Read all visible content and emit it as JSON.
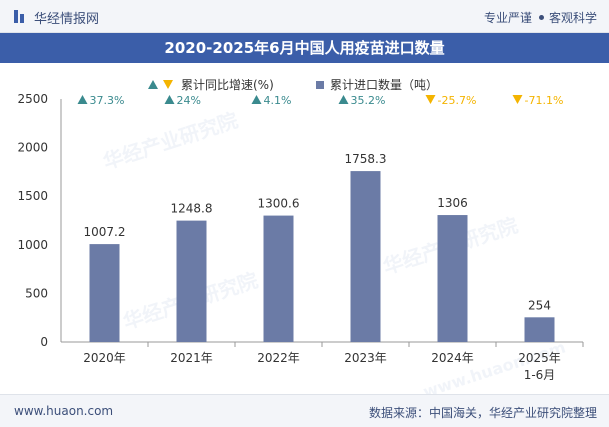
{
  "header": {
    "brand": "华经情报网",
    "slogan_left": "专业严谨",
    "slogan_right": "客观科学"
  },
  "chart_data": {
    "type": "bar",
    "title": "2020-2025年6月中国人用疫苗进口数量",
    "categories": [
      "2020年",
      "2021年",
      "2022年",
      "2023年",
      "2024年",
      "2025年1-6月"
    ],
    "series": [
      {
        "name": "累计进口数量（吨）",
        "values": [
          1007.2,
          1248.8,
          1300.6,
          1758.3,
          1306,
          254
        ],
        "labels": [
          "1007.2",
          "1248.8",
          "1300.6",
          "1758.3",
          "1306",
          "254"
        ]
      }
    ],
    "growth": {
      "name": "累计同比增速(%)",
      "values": [
        37.3,
        24,
        4.1,
        35.2,
        -25.7,
        -71.1
      ],
      "labels": [
        "37.3%",
        "24%",
        "4.1%",
        "35.2%",
        "-25.7%",
        "-71.1%"
      ]
    },
    "y_ticks": [
      0,
      500,
      1000,
      1500,
      2000,
      2500
    ],
    "ylim": [
      0,
      2500
    ],
    "legend_position": "top-center",
    "colors": {
      "bar": "#6b7ba6",
      "up": "#3a8a8e",
      "down": "#f4b400",
      "axis": "#999999",
      "text": "#333333"
    }
  },
  "watermark": {
    "text": "华经产业研究院",
    "site": "www.huaon.com"
  },
  "footer": {
    "site": "www.huaon.com",
    "source": "数据来源：中国海关，华经产业研究院整理"
  }
}
